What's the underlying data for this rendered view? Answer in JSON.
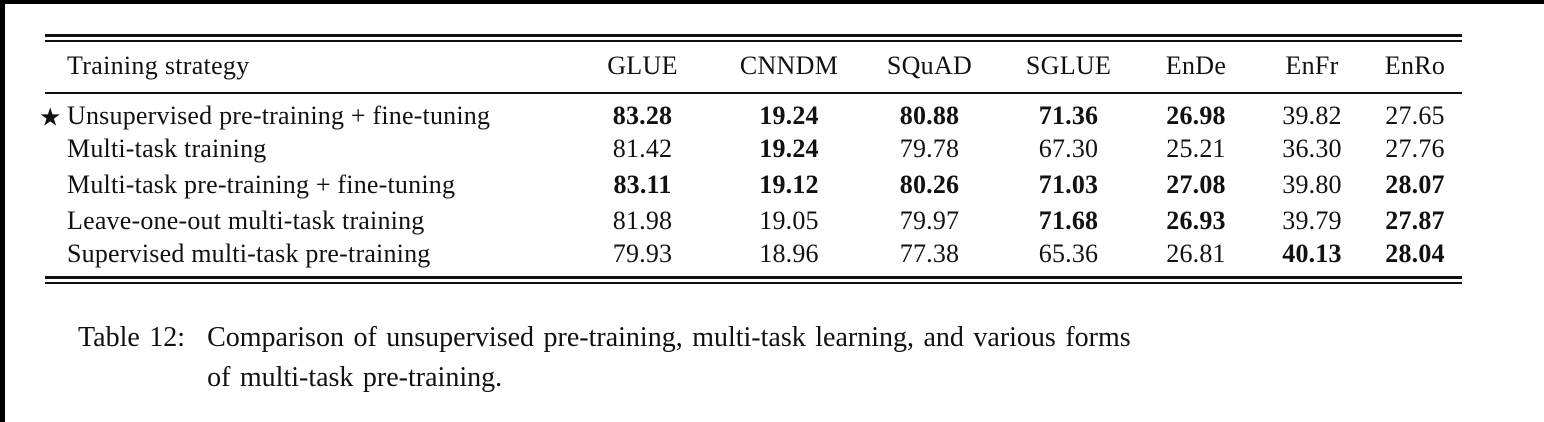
{
  "table": {
    "columns": [
      "Training strategy",
      "GLUE",
      "CNNDM",
      "SQuAD",
      "SGLUE",
      "EnDe",
      "EnFr",
      "EnRo"
    ],
    "rows": [
      {
        "marker": "★",
        "strategy": "Unsupervised pre-training + fine-tuning",
        "values": [
          "83.28",
          "19.24",
          "80.88",
          "71.36",
          "26.98",
          "39.82",
          "27.65"
        ],
        "bold": [
          true,
          true,
          true,
          true,
          true,
          false,
          false
        ]
      },
      {
        "marker": "",
        "strategy": "Multi-task training",
        "values": [
          "81.42",
          "19.24",
          "79.78",
          "67.30",
          "25.21",
          "36.30",
          "27.76"
        ],
        "bold": [
          false,
          true,
          false,
          false,
          false,
          false,
          false
        ]
      },
      {
        "marker": "",
        "strategy": "Multi-task pre-training + fine-tuning",
        "values": [
          "83.11",
          "19.12",
          "80.26",
          "71.03",
          "27.08",
          "39.80",
          "28.07"
        ],
        "bold": [
          true,
          true,
          true,
          true,
          true,
          false,
          true
        ]
      },
      {
        "marker": "",
        "strategy": "Leave-one-out multi-task training",
        "values": [
          "81.98",
          "19.05",
          "79.97",
          "71.68",
          "26.93",
          "39.79",
          "27.87"
        ],
        "bold": [
          false,
          false,
          false,
          true,
          true,
          false,
          true
        ]
      },
      {
        "marker": "",
        "strategy": "Supervised multi-task pre-training",
        "values": [
          "79.93",
          "18.96",
          "77.38",
          "65.36",
          "26.81",
          "40.13",
          "28.04"
        ],
        "bold": [
          false,
          false,
          false,
          false,
          false,
          true,
          true
        ]
      }
    ]
  },
  "caption": {
    "label": "Table 12:",
    "lines": [
      "Comparison of unsupervised pre-training, multi-task learning, and various forms",
      "of multi-task pre-training."
    ]
  },
  "colors": {
    "text": "#111111",
    "rule": "#111111",
    "edge": "#000000",
    "background": "#ffffff"
  }
}
